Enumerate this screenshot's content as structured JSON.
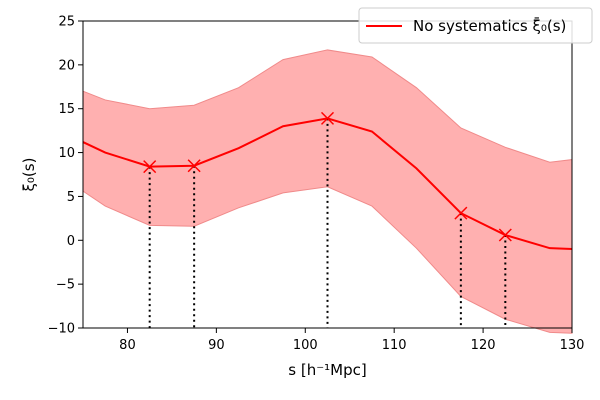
{
  "chart_data": {
    "type": "line",
    "x": [
      75,
      77.5,
      82.5,
      87.5,
      92.5,
      97.5,
      102.5,
      107.5,
      112.5,
      117.5,
      122.5,
      127.5,
      130
    ],
    "series": [
      {
        "name": "No systematics ξ̄₀(s)",
        "values": [
          11.2,
          10.0,
          8.4,
          8.5,
          10.5,
          13.0,
          13.9,
          12.4,
          8.2,
          3.1,
          0.6,
          -0.9,
          -1.0
        ],
        "band_upper": [
          17.0,
          16.0,
          15.0,
          15.4,
          17.4,
          20.6,
          21.7,
          20.9,
          17.4,
          12.8,
          10.6,
          8.9,
          9.2
        ],
        "band_lower": [
          5.6,
          3.9,
          1.7,
          1.6,
          3.7,
          5.4,
          6.1,
          3.9,
          -0.9,
          -6.4,
          -9.0,
          -10.5,
          -10.6
        ],
        "color": "#ff0000",
        "band_color": "#ffb0b0"
      }
    ],
    "markers": [
      {
        "x": 82.5,
        "y": 8.4
      },
      {
        "x": 87.5,
        "y": 8.5
      },
      {
        "x": 102.5,
        "y": 13.9
      },
      {
        "x": 117.5,
        "y": 3.1
      },
      {
        "x": 122.5,
        "y": 0.6
      }
    ],
    "xlabel": "s [h⁻¹Mpc]",
    "ylabel": "ξ₀(s)",
    "xlim": [
      75,
      130
    ],
    "ylim": [
      -10,
      25
    ],
    "xticks": [
      80,
      90,
      100,
      110,
      120,
      130
    ],
    "yticks": [
      -10,
      -5,
      0,
      5,
      10,
      15,
      20,
      25
    ],
    "xtick_labels": [
      "80",
      "90",
      "100",
      "110",
      "120",
      "130"
    ],
    "ytick_labels": [
      "−10",
      "−5",
      "0",
      "5",
      "10",
      "15",
      "20",
      "25"
    ],
    "legend_position": "top-right",
    "grid": false
  }
}
